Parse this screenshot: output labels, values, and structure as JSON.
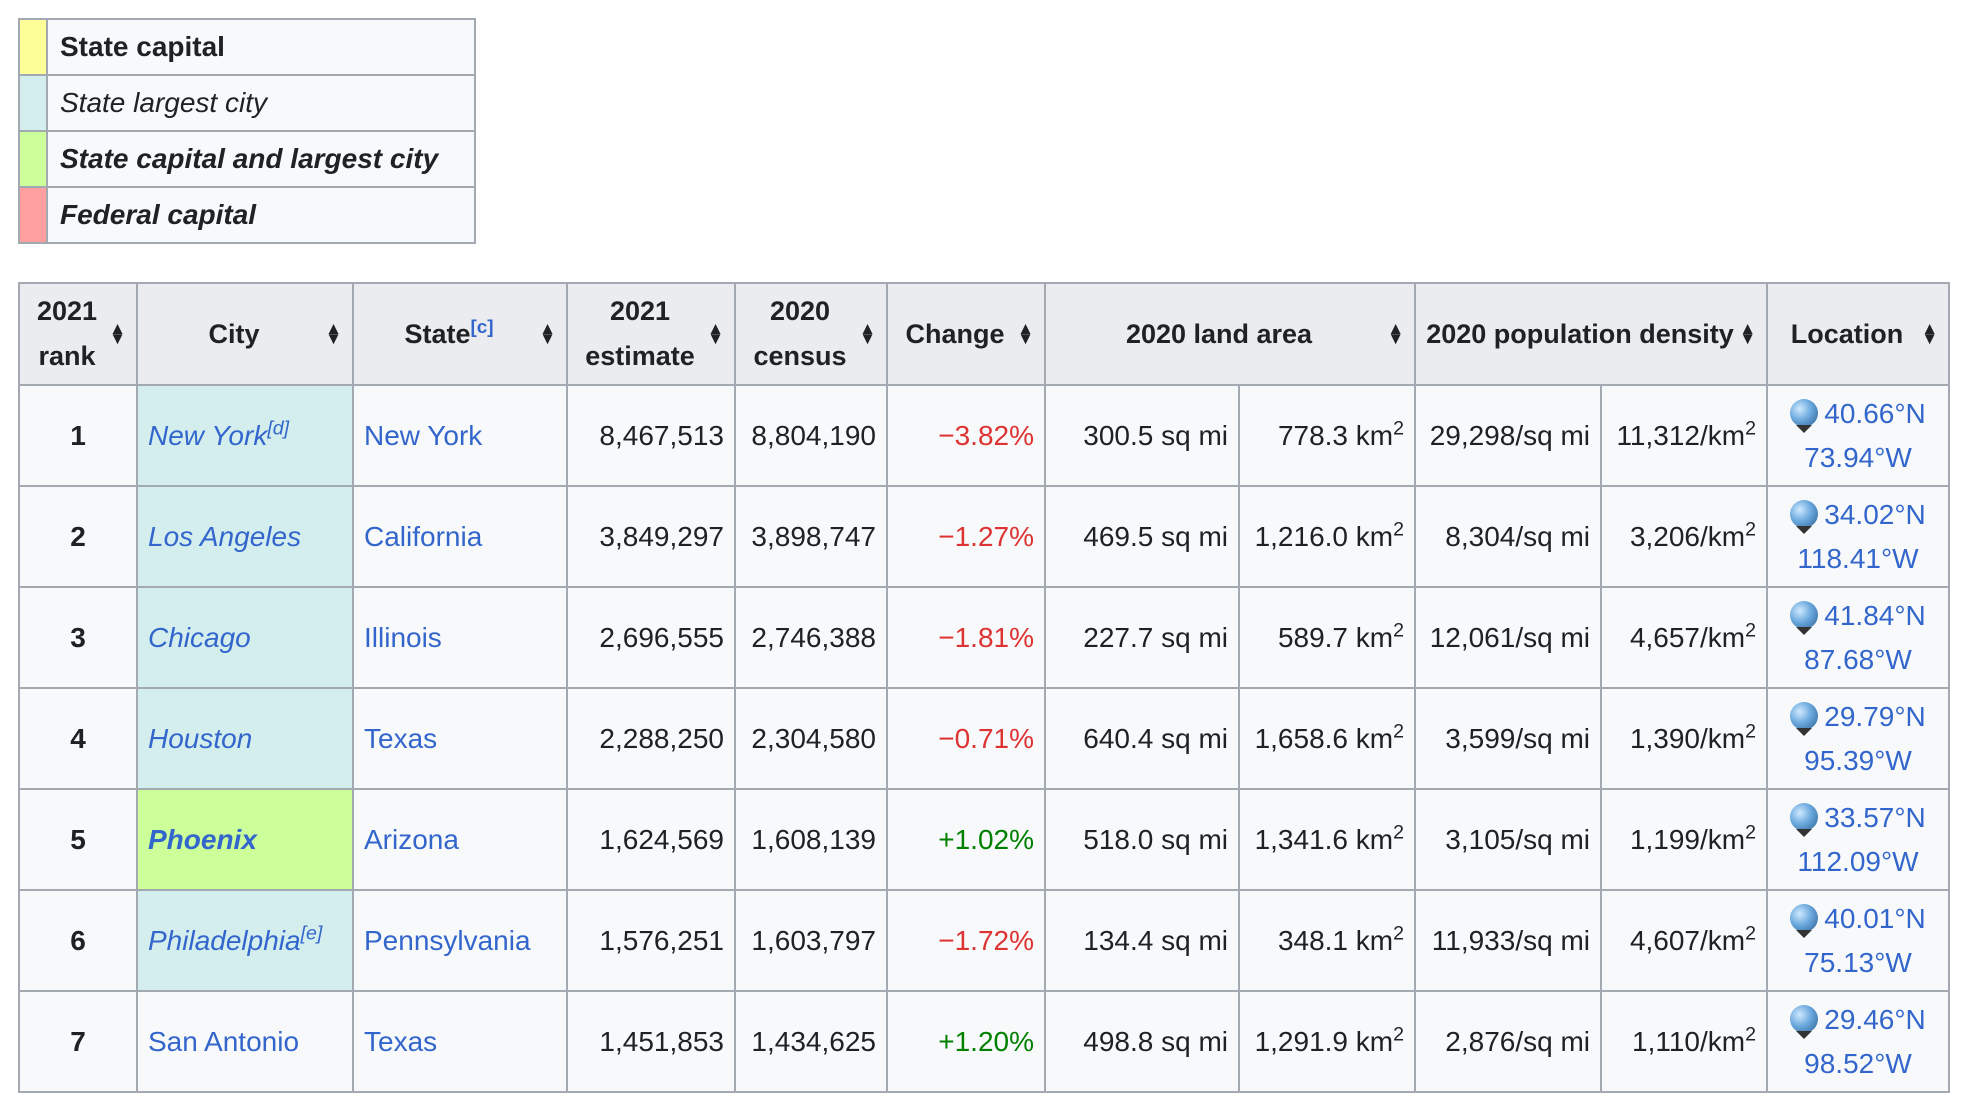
{
  "legend": [
    {
      "label": "State capital",
      "color": "#fefe98",
      "style": "bold"
    },
    {
      "label": "State largest city",
      "color": "#d4eeee",
      "style": "italic"
    },
    {
      "label": "State capital and largest city",
      "color": "#ccff99",
      "style": "bold-italic"
    },
    {
      "label": "Federal capital",
      "color": "#ff9f9f",
      "style": "bold-italic"
    }
  ],
  "headers": {
    "rank": "2021 rank",
    "city": "City",
    "state": "State",
    "state_note": "[c]",
    "estimate": "2021 estimate",
    "census": "2020 census",
    "change": "Change",
    "land_area": "2020 land area",
    "density": "2020 population density",
    "location": "Location"
  },
  "sort_icon": "sort-arrows-icon",
  "location_icon": "globe-icon",
  "rows": [
    {
      "rank": "1",
      "city": "New York",
      "city_note": "[d]",
      "type": "largest",
      "state": "New York",
      "estimate": "8,467,513",
      "census": "8,804,190",
      "change": "−3.82%",
      "change_sign": "neg",
      "area_mi": "300.5 sq mi",
      "area_km": "778.3 km",
      "density_mi": "29,298/sq mi",
      "density_km": "11,312/km",
      "lat": "40.66°N",
      "lon": "73.94°W"
    },
    {
      "rank": "2",
      "city": "Los Angeles",
      "city_note": "",
      "type": "largest",
      "state": "California",
      "estimate": "3,849,297",
      "census": "3,898,747",
      "change": "−1.27%",
      "change_sign": "neg",
      "area_mi": "469.5 sq mi",
      "area_km": "1,216.0 km",
      "density_mi": "8,304/sq mi",
      "density_km": "3,206/km",
      "lat": "34.02°N",
      "lon": "118.41°W"
    },
    {
      "rank": "3",
      "city": "Chicago",
      "city_note": "",
      "type": "largest",
      "state": "Illinois",
      "estimate": "2,696,555",
      "census": "2,746,388",
      "change": "−1.81%",
      "change_sign": "neg",
      "area_mi": "227.7 sq mi",
      "area_km": "589.7 km",
      "density_mi": "12,061/sq mi",
      "density_km": "4,657/km",
      "lat": "41.84°N",
      "lon": "87.68°W"
    },
    {
      "rank": "4",
      "city": "Houston",
      "city_note": "",
      "type": "largest",
      "state": "Texas",
      "estimate": "2,288,250",
      "census": "2,304,580",
      "change": "−0.71%",
      "change_sign": "neg",
      "area_mi": "640.4 sq mi",
      "area_km": "1,658.6 km",
      "density_mi": "3,599/sq mi",
      "density_km": "1,390/km",
      "lat": "29.79°N",
      "lon": "95.39°W"
    },
    {
      "rank": "5",
      "city": "Phoenix",
      "city_note": "",
      "type": "both",
      "state": "Arizona",
      "estimate": "1,624,569",
      "census": "1,608,139",
      "change": "+1.02%",
      "change_sign": "pos",
      "area_mi": "518.0 sq mi",
      "area_km": "1,341.6 km",
      "density_mi": "3,105/sq mi",
      "density_km": "1,199/km",
      "lat": "33.57°N",
      "lon": "112.09°W"
    },
    {
      "rank": "6",
      "city": "Philadelphia",
      "city_note": "[e]",
      "type": "largest",
      "state": "Pennsylvania",
      "estimate": "1,576,251",
      "census": "1,603,797",
      "change": "−1.72%",
      "change_sign": "neg",
      "area_mi": "134.4 sq mi",
      "area_km": "348.1 km",
      "density_mi": "11,933/sq mi",
      "density_km": "4,607/km",
      "lat": "40.01°N",
      "lon": "75.13°W"
    },
    {
      "rank": "7",
      "city": "San Antonio",
      "city_note": "",
      "type": "plain",
      "state": "Texas",
      "estimate": "1,451,853",
      "census": "1,434,625",
      "change": "+1.20%",
      "change_sign": "pos",
      "area_mi": "498.8 sq mi",
      "area_km": "1,291.9 km",
      "density_mi": "2,876/sq mi",
      "density_km": "1,110/km",
      "lat": "29.46°N",
      "lon": "98.52°W"
    }
  ]
}
